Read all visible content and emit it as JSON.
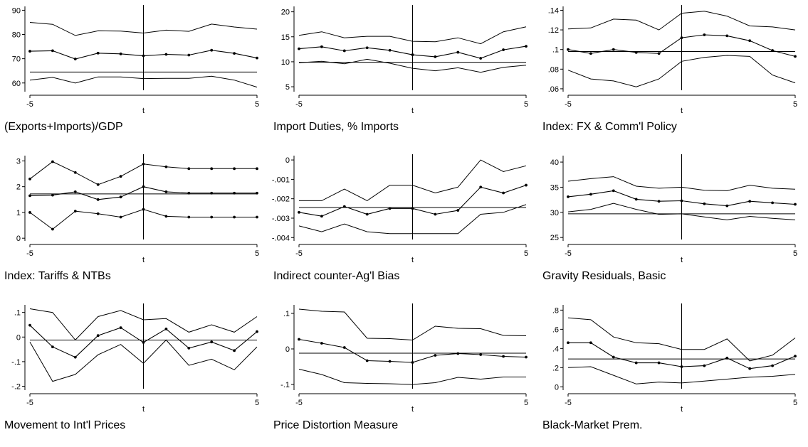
{
  "chart_data": [
    {
      "type": "line",
      "title": "(Exports+Imports)/GDP",
      "xlabel": "t",
      "x": [
        -5,
        -4,
        -3,
        -2,
        -1,
        0,
        1,
        2,
        3,
        4,
        5
      ],
      "xticks": [
        "-5",
        "5"
      ],
      "ylim": [
        57,
        91
      ],
      "yticks": [
        {
          "v": 60,
          "label": "60"
        },
        {
          "v": 70,
          "label": "70"
        },
        {
          "v": 80,
          "label": "80"
        },
        {
          "v": 90,
          "label": "90"
        }
      ],
      "reference_line": 64.5,
      "vertical_line_x": 0,
      "series": [
        {
          "role": "upper",
          "values": [
            85,
            84.2,
            79.6,
            81.5,
            81.4,
            80.6,
            81.8,
            81.3,
            84.3,
            83.1,
            82.2
          ]
        },
        {
          "role": "mean",
          "markers": true,
          "values": [
            73.1,
            73.3,
            69.9,
            72.3,
            72,
            71.2,
            71.8,
            71.5,
            73.5,
            72.2,
            70.3
          ]
        },
        {
          "role": "lower",
          "values": [
            61.2,
            62.3,
            60,
            62.5,
            62.5,
            61.8,
            61.9,
            61.9,
            62.8,
            61.2,
            58.3
          ]
        }
      ]
    },
    {
      "type": "line",
      "title": "Import Duties, % Imports",
      "xlabel": "t",
      "x": [
        -5,
        -4,
        -3,
        -2,
        -1,
        0,
        1,
        2,
        3,
        4,
        5
      ],
      "xticks": [
        "-5",
        "5"
      ],
      "ylim": [
        4.3,
        20.8
      ],
      "yticks": [
        {
          "v": 5,
          "label": "5"
        },
        {
          "v": 10,
          "label": "10"
        },
        {
          "v": 15,
          "label": "15"
        },
        {
          "v": 20,
          "label": "20"
        }
      ],
      "reference_line": 9.9,
      "vertical_line_x": 0,
      "series": [
        {
          "role": "upper",
          "values": [
            15.3,
            16,
            14.8,
            15.1,
            15.1,
            14.1,
            14,
            14.8,
            13.6,
            16,
            17
          ]
        },
        {
          "role": "mean",
          "markers": true,
          "values": [
            12.6,
            13,
            12.2,
            12.8,
            12.3,
            11.4,
            11,
            11.9,
            10.7,
            12.4,
            13.1
          ]
        },
        {
          "role": "lower",
          "values": [
            9.8,
            10.1,
            9.6,
            10.5,
            9.7,
            8.7,
            8.2,
            8.8,
            7.9,
            8.9,
            9.3
          ]
        }
      ]
    },
    {
      "type": "line",
      "title": "Index: FX & Comm'l Policy",
      "xlabel": "t",
      "x": [
        -5,
        -4,
        -3,
        -2,
        -1,
        0,
        1,
        2,
        3,
        4,
        5
      ],
      "xticks": [
        "-5",
        "5"
      ],
      "ylim": [
        0.0585,
        0.1425
      ],
      "yticks": [
        {
          "v": 0.06,
          "label": ".06"
        },
        {
          "v": 0.08,
          "label": ".08"
        },
        {
          "v": 0.1,
          "label": ".1"
        },
        {
          "v": 0.12,
          "label": ".12"
        },
        {
          "v": 0.14,
          "label": ".14"
        }
      ],
      "reference_line": 0.098,
      "vertical_line_x": 0,
      "series": [
        {
          "role": "upper",
          "values": [
            0.121,
            0.122,
            0.131,
            0.13,
            0.12,
            0.137,
            0.139,
            0.134,
            0.124,
            0.123,
            0.12
          ]
        },
        {
          "role": "mean",
          "markers": true,
          "values": [
            0.1,
            0.096,
            0.1,
            0.097,
            0.096,
            0.112,
            0.115,
            0.114,
            0.109,
            0.099,
            0.093
          ]
        },
        {
          "role": "lower",
          "values": [
            0.079,
            0.07,
            0.068,
            0.062,
            0.07,
            0.088,
            0.092,
            0.094,
            0.093,
            0.074,
            0.066
          ]
        }
      ]
    },
    {
      "type": "line",
      "title": "Index: Tariffs & NTBs",
      "xlabel": "t",
      "x": [
        -5,
        -4,
        -3,
        -2,
        -1,
        0,
        1,
        2,
        3,
        4,
        5
      ],
      "xticks": [
        "-5",
        "5"
      ],
      "ylim": [
        -0.05,
        3.15
      ],
      "yticks": [
        {
          "v": 0,
          "label": "0"
        },
        {
          "v": 1,
          "label": "1"
        },
        {
          "v": 2,
          "label": "2"
        },
        {
          "v": 3,
          "label": "3"
        }
      ],
      "reference_line": 1.72,
      "vertical_line_x": 0,
      "series": [
        {
          "role": "upper",
          "markers": true,
          "values": [
            2.3,
            2.97,
            2.55,
            2.08,
            2.4,
            2.88,
            2.77,
            2.7,
            2.7,
            2.7,
            2.7
          ]
        },
        {
          "role": "mean",
          "markers": true,
          "values": [
            1.65,
            1.67,
            1.8,
            1.5,
            1.6,
            2,
            1.8,
            1.75,
            1.75,
            1.75,
            1.75
          ]
        },
        {
          "role": "lower",
          "markers": true,
          "values": [
            1,
            0.35,
            1.05,
            0.95,
            0.82,
            1.12,
            0.85,
            0.82,
            0.82,
            0.82,
            0.82
          ]
        }
      ]
    },
    {
      "type": "line",
      "title": "Indirect counter-Ag'l Bias",
      "xlabel": "t",
      "x": [
        -5,
        -4,
        -3,
        -2,
        -1,
        0,
        1,
        2,
        3,
        4,
        5
      ],
      "xticks": [
        "-5",
        "5"
      ],
      "ylim": [
        -0.0041,
        0.00015
      ],
      "yticks": [
        {
          "v": -0.004,
          "label": "-.004"
        },
        {
          "v": -0.003,
          "label": "-.003"
        },
        {
          "v": -0.002,
          "label": "-.002"
        },
        {
          "v": -0.001,
          "label": "-.001"
        },
        {
          "v": 0,
          "label": "0"
        }
      ],
      "reference_line": -0.00245,
      "vertical_line_x": 0,
      "series": [
        {
          "role": "upper",
          "values": [
            -0.0021,
            -0.0021,
            -0.0015,
            -0.0021,
            -0.0013,
            -0.0013,
            -0.0017,
            -0.0014,
            0,
            -0.0006,
            -0.0003
          ]
        },
        {
          "role": "mean",
          "markers": true,
          "values": [
            -0.0027,
            -0.0029,
            -0.0024,
            -0.0028,
            -0.0025,
            -0.0025,
            -0.0028,
            -0.0026,
            -0.0014,
            -0.0017,
            -0.0013
          ]
        },
        {
          "role": "lower",
          "values": [
            -0.0034,
            -0.0037,
            -0.0033,
            -0.0037,
            -0.0038,
            -0.0038,
            -0.0038,
            -0.0038,
            -0.0028,
            -0.0027,
            -0.0023
          ]
        }
      ]
    },
    {
      "type": "line",
      "title": "Gravity Residuals, Basic",
      "xlabel": "t",
      "x": [
        -5,
        -4,
        -3,
        -2,
        -1,
        0,
        1,
        2,
        3,
        4,
        5
      ],
      "xticks": [
        "-5",
        "5"
      ],
      "ylim": [
        24.6,
        41
      ],
      "yticks": [
        {
          "v": 25,
          "label": "25"
        },
        {
          "v": 30,
          "label": "30"
        },
        {
          "v": 35,
          "label": "35"
        },
        {
          "v": 40,
          "label": "40"
        }
      ],
      "reference_line": 29.7,
      "vertical_line_x": 0,
      "series": [
        {
          "role": "upper",
          "values": [
            36.2,
            36.7,
            37.1,
            35.2,
            34.8,
            35,
            34.4,
            34.3,
            35.4,
            34.8,
            34.6
          ]
        },
        {
          "role": "mean",
          "markers": true,
          "values": [
            33.1,
            33.6,
            34.3,
            32.6,
            32.2,
            32.3,
            31.7,
            31.3,
            32.2,
            31.9,
            31.6
          ]
        },
        {
          "role": "lower",
          "values": [
            30.1,
            30.6,
            31.8,
            30.6,
            29.6,
            29.7,
            29.1,
            28.5,
            29.2,
            28.8,
            28.5
          ]
        }
      ]
    },
    {
      "type": "line",
      "title": "Movement to Int'l Prices",
      "xlabel": "t",
      "x": [
        -5,
        -4,
        -3,
        -2,
        -1,
        0,
        1,
        2,
        3,
        4,
        5
      ],
      "xticks": [
        "-5",
        "5"
      ],
      "ylim": [
        -0.21,
        0.125
      ],
      "yticks": [
        {
          "v": -0.2,
          "label": "-.2"
        },
        {
          "v": -0.1,
          "label": "-.1"
        },
        {
          "v": 0,
          "label": "0"
        },
        {
          "v": 0.1,
          "label": ".1"
        }
      ],
      "reference_line": -0.012,
      "vertical_line_x": 0,
      "series": [
        {
          "role": "upper",
          "values": [
            0.115,
            0.1,
            -0.012,
            0.083,
            0.108,
            0.07,
            0.075,
            0.02,
            0.05,
            0.02,
            0.083
          ]
        },
        {
          "role": "mean",
          "markers": true,
          "values": [
            0.048,
            -0.04,
            -0.082,
            0.006,
            0.038,
            -0.022,
            0.033,
            -0.045,
            -0.02,
            -0.055,
            0.022
          ]
        },
        {
          "role": "lower",
          "values": [
            -0.02,
            -0.18,
            -0.152,
            -0.072,
            -0.03,
            -0.107,
            -0.012,
            -0.115,
            -0.09,
            -0.133,
            -0.04
          ]
        }
      ]
    },
    {
      "type": "line",
      "title": "Price Distortion Measure",
      "xlabel": "t",
      "x": [
        -5,
        -4,
        -3,
        -2,
        -1,
        0,
        1,
        2,
        3,
        4,
        5
      ],
      "xticks": [
        "-5",
        "5"
      ],
      "ylim": [
        -0.112,
        0.12
      ],
      "yticks": [
        {
          "v": -0.1,
          "label": "-.1"
        },
        {
          "v": 0,
          "label": "0"
        },
        {
          "v": 0.1,
          "label": ".1"
        }
      ],
      "reference_line": -0.012,
      "vertical_line_x": 0,
      "series": [
        {
          "role": "upper",
          "values": [
            0.112,
            0.106,
            0.104,
            0.03,
            0.029,
            0.025,
            0.064,
            0.058,
            0.057,
            0.038,
            0.037
          ]
        },
        {
          "role": "mean",
          "markers": true,
          "values": [
            0.027,
            0.016,
            0.004,
            -0.033,
            -0.035,
            -0.038,
            -0.018,
            -0.013,
            -0.016,
            -0.021,
            -0.023
          ]
        },
        {
          "role": "lower",
          "values": [
            -0.057,
            -0.072,
            -0.095,
            -0.097,
            -0.098,
            -0.1,
            -0.095,
            -0.08,
            -0.085,
            -0.079,
            -0.079
          ]
        }
      ]
    },
    {
      "type": "line",
      "title": "Black-Market Prem.",
      "xlabel": "t",
      "x": [
        -5,
        -4,
        -3,
        -2,
        -1,
        0,
        1,
        2,
        3,
        4,
        5
      ],
      "xticks": [
        "-5",
        "5"
      ],
      "ylim": [
        -0.02,
        0.84
      ],
      "yticks": [
        {
          "v": 0,
          "label": "0"
        },
        {
          "v": 0.2,
          "label": ".2"
        },
        {
          "v": 0.4,
          "label": ".4"
        },
        {
          "v": 0.6,
          "label": ".6"
        },
        {
          "v": 0.8,
          "label": ".8"
        }
      ],
      "reference_line": 0.29,
      "vertical_line_x": 0,
      "series": [
        {
          "role": "upper",
          "values": [
            0.72,
            0.7,
            0.52,
            0.46,
            0.45,
            0.39,
            0.39,
            0.5,
            0.27,
            0.33,
            0.51
          ]
        },
        {
          "role": "mean",
          "markers": true,
          "values": [
            0.46,
            0.46,
            0.31,
            0.25,
            0.25,
            0.21,
            0.22,
            0.3,
            0.19,
            0.22,
            0.32
          ]
        },
        {
          "role": "lower",
          "values": [
            0.2,
            0.21,
            0.12,
            0.03,
            0.05,
            0.04,
            0.06,
            0.08,
            0.1,
            0.11,
            0.13
          ]
        }
      ]
    }
  ]
}
